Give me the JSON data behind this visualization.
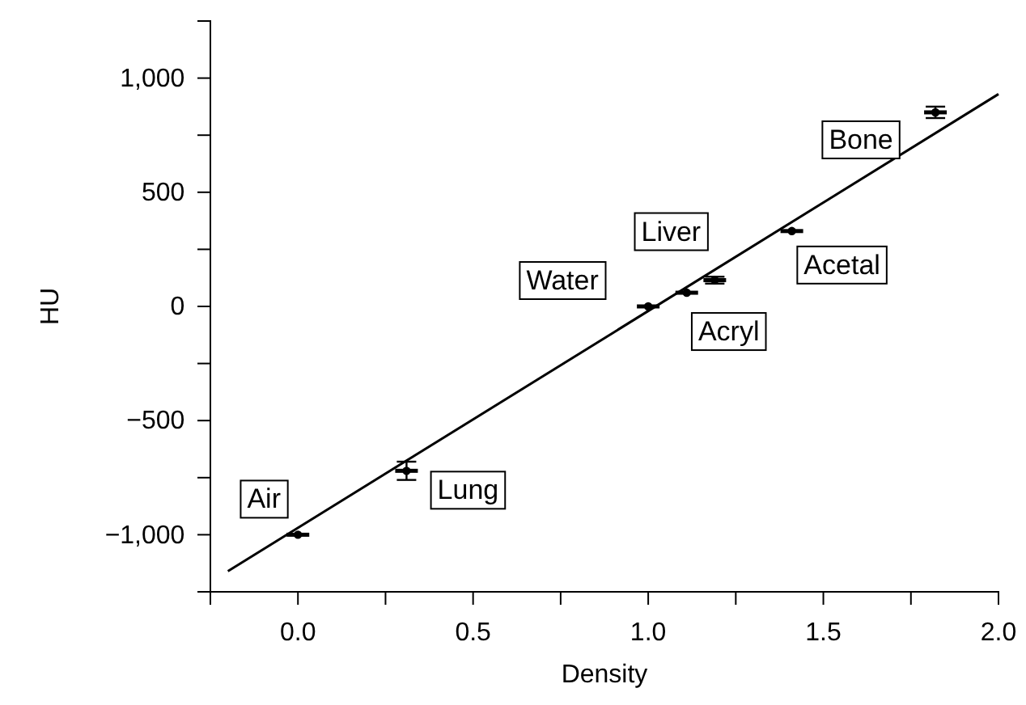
{
  "chart_data": {
    "type": "scatter",
    "xlabel": "Density",
    "ylabel": "HU",
    "xlim": [
      -0.25,
      2.0
    ],
    "ylim": [
      -1250,
      1250
    ],
    "xticks": [
      {
        "value": -0.25,
        "label": null
      },
      {
        "value": 0,
        "label": "0.0"
      },
      {
        "value": 0.25,
        "label": null
      },
      0.5,
      {
        "value": 0.75,
        "label": null
      },
      {
        "value": 1,
        "label": "1.0"
      },
      {
        "value": 1.25,
        "label": null
      },
      1.5,
      {
        "value": 1.75,
        "label": null
      },
      {
        "value": 2,
        "label": "2.0"
      }
    ],
    "yticks": [
      {
        "value": -1250,
        "label": null
      },
      {
        "value": -1000,
        "label": "−1,000"
      },
      {
        "value": -750,
        "label": null
      },
      {
        "value": -500,
        "label": "−500"
      },
      {
        "value": -250,
        "label": null
      },
      0,
      {
        "value": 250,
        "label": null
      },
      500,
      {
        "value": 750,
        "label": null
      },
      {
        "value": 1000,
        "label": "1,000"
      },
      {
        "value": 1250,
        "label": null
      }
    ],
    "series": [
      {
        "type": "scatter",
        "color": "#000000",
        "x": [
          0.0,
          0.31,
          1.0,
          1.11,
          1.19,
          1.41,
          1.82
        ],
        "values": [
          -1000,
          -720,
          0,
          60,
          115,
          330,
          850
        ],
        "errors": [
          null,
          40,
          null,
          null,
          15,
          null,
          25
        ]
      },
      {
        "type": "line",
        "color": "#000000",
        "x": [
          -0.2,
          2.0
        ],
        "values": [
          -1160,
          930
        ],
        "line_style": "solid"
      }
    ],
    "annotations": [
      {
        "text": "Air",
        "x": 0.0,
        "y": -1000
      },
      {
        "text": "Lung",
        "x": 0.31,
        "y": -720
      },
      {
        "text": "Water",
        "x": 1.0,
        "y": 0
      },
      {
        "text": "Acryl",
        "x": 1.11,
        "y": 60
      },
      {
        "text": "Liver",
        "x": 1.19,
        "y": 115
      },
      {
        "text": "Acetal",
        "x": 1.41,
        "y": 330
      },
      {
        "text": "Bone",
        "x": 1.82,
        "y": 850
      }
    ],
    "grid": false
  }
}
